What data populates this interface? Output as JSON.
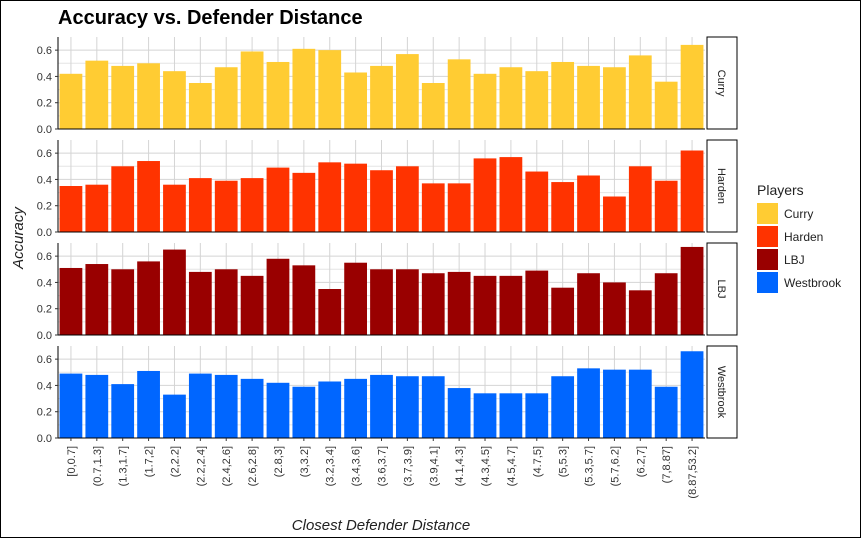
{
  "chart_data": {
    "type": "bar",
    "title": "Accuracy vs. Defender Distance",
    "xlabel": "Closest Defender Distance",
    "ylabel": "Accuracy",
    "ylim": [
      0,
      0.7
    ],
    "yticks": [
      "0.0",
      "0.2",
      "0.4",
      "0.6"
    ],
    "grid": true,
    "legend_title": "Players",
    "legend_position": "right",
    "categories": [
      "[0,0.7]",
      "(0.7,1.3]",
      "(1.3,1.7]",
      "(1.7,2]",
      "(2,2.2]",
      "(2.2,2.4]",
      "(2.4,2.6]",
      "(2.6,2.8]",
      "(2.8,3]",
      "(3,3.2]",
      "(3.2,3.4]",
      "(3.4,3.6]",
      "(3.6,3.7]",
      "(3.7,3.9]",
      "(3.9,4.1]",
      "(4.1,4.3]",
      "(4.3,4.5]",
      "(4.5,4.7]",
      "(4.7,5]",
      "(5,5.3]",
      "(5.3,5.7]",
      "(5.7,6.2]",
      "(6.2,7]",
      "(7,8.87]",
      "(8.87,53.2]"
    ],
    "series": [
      {
        "name": "Curry",
        "color": "#FFCC33",
        "values": [
          0.42,
          0.52,
          0.48,
          0.5,
          0.44,
          0.35,
          0.47,
          0.59,
          0.51,
          0.61,
          0.6,
          0.43,
          0.48,
          0.57,
          0.35,
          0.53,
          0.42,
          0.47,
          0.44,
          0.51,
          0.48,
          0.47,
          0.56,
          0.36,
          0.64
        ]
      },
      {
        "name": "Harden",
        "color": "#FF3300",
        "values": [
          0.35,
          0.36,
          0.5,
          0.54,
          0.36,
          0.41,
          0.39,
          0.41,
          0.49,
          0.45,
          0.53,
          0.52,
          0.47,
          0.5,
          0.37,
          0.37,
          0.56,
          0.57,
          0.46,
          0.38,
          0.43,
          0.27,
          0.5,
          0.39,
          0.62
        ]
      },
      {
        "name": "LBJ",
        "color": "#990000",
        "values": [
          0.51,
          0.54,
          0.5,
          0.56,
          0.65,
          0.48,
          0.5,
          0.45,
          0.58,
          0.53,
          0.35,
          0.55,
          0.5,
          0.5,
          0.47,
          0.48,
          0.45,
          0.45,
          0.49,
          0.36,
          0.47,
          0.4,
          0.34,
          0.47,
          0.67
        ]
      },
      {
        "name": "Westbrook",
        "color": "#0066FF",
        "values": [
          0.49,
          0.48,
          0.41,
          0.51,
          0.33,
          0.49,
          0.48,
          0.45,
          0.42,
          0.39,
          0.43,
          0.45,
          0.48,
          0.47,
          0.47,
          0.38,
          0.34,
          0.34,
          0.34,
          0.47,
          0.53,
          0.52,
          0.52,
          0.39,
          0.66
        ]
      }
    ]
  }
}
